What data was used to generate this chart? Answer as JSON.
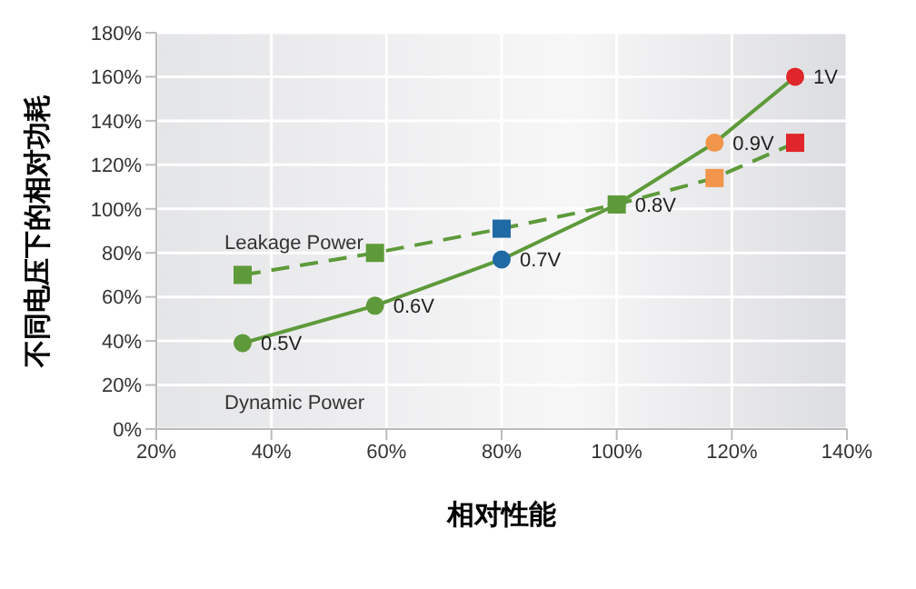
{
  "chart_data": {
    "type": "line",
    "xlabel": "相对性能",
    "ylabel": "不同电压下的相对功耗",
    "xlim": [
      20,
      140
    ],
    "xticks": [
      {
        "value": 20,
        "label": "20%"
      },
      {
        "value": 40,
        "label": "40%"
      },
      {
        "value": 60,
        "label": "60%"
      },
      {
        "value": 80,
        "label": "80%"
      },
      {
        "value": 100,
        "label": "100%"
      },
      {
        "value": 120,
        "label": "120%"
      },
      {
        "value": 140,
        "label": "140%"
      }
    ],
    "ylim": [
      0,
      180
    ],
    "yticks": [
      {
        "value": 0,
        "label": "0%"
      },
      {
        "value": 20,
        "label": "20%"
      },
      {
        "value": 40,
        "label": "40%"
      },
      {
        "value": 60,
        "label": "60%"
      },
      {
        "value": 80,
        "label": "80%"
      },
      {
        "value": 100,
        "label": "100%"
      },
      {
        "value": 120,
        "label": "120%"
      },
      {
        "value": 140,
        "label": "140%"
      },
      {
        "value": 160,
        "label": "160%"
      },
      {
        "value": 180,
        "label": "180%"
      }
    ],
    "grid": true,
    "series": [
      {
        "name": "Leakage Power",
        "color": "#5e9a3a",
        "marker": "square",
        "line_style": "dashed",
        "x": [
          35,
          58,
          80,
          100,
          117,
          131
        ],
        "values": [
          70,
          80,
          91,
          102,
          114,
          130
        ],
        "colors": [
          "#5e9a3a",
          "#5e9a3a",
          "#1f6aa5",
          "#5e9a3a",
          "#f0954a",
          "#e0262a"
        ]
      },
      {
        "name": "Dynamic Power",
        "color": "#5e9a3a",
        "marker": "circle",
        "line_style": "solid",
        "x": [
          35,
          58,
          80,
          100,
          117,
          131
        ],
        "values": [
          39,
          56,
          77,
          102,
          130,
          160
        ],
        "colors": [
          "#5e9a3a",
          "#5e9a3a",
          "#1f6aa5",
          "#5e9a3a",
          "#f0954a",
          "#e0262a"
        ]
      }
    ],
    "annotations": [
      {
        "text": "0.5V",
        "x": 35,
        "y": 39
      },
      {
        "text": "0.6V",
        "x": 58,
        "y": 56
      },
      {
        "text": "0.7V",
        "x": 80,
        "y": 77
      },
      {
        "text": "0.8V",
        "x": 100,
        "y": 102
      },
      {
        "text": "0.9V",
        "x": 117,
        "y": 130
      },
      {
        "text": "1V",
        "x": 131,
        "y": 160
      }
    ]
  }
}
